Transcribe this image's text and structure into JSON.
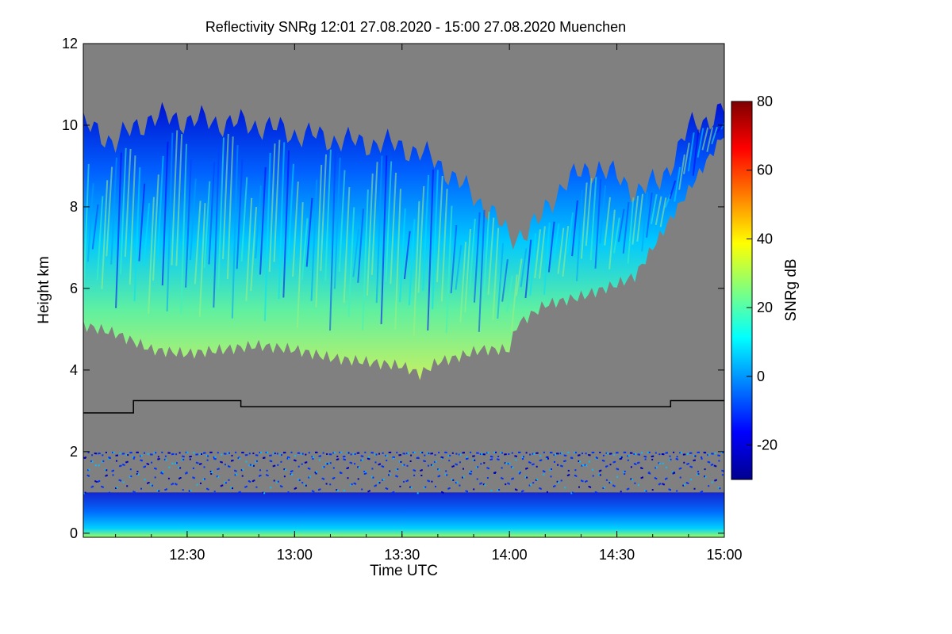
{
  "chart_data": {
    "type": "heatmap",
    "title": "Reflectivity SNRg   12:01 27.08.2020 - 15:00 27.08.2020 Muenchen",
    "xlabel": "Time UTC",
    "ylabel": "Height km",
    "x_ticks": [
      "12:30",
      "13:00",
      "13:30",
      "14:00",
      "14:30",
      "15:00"
    ],
    "x_tick_minutes": [
      30,
      60,
      90,
      120,
      150,
      180
    ],
    "xlim_minutes": [
      1,
      180
    ],
    "y_ticks": [
      0,
      2,
      4,
      6,
      8,
      10,
      12
    ],
    "ylim": [
      -0.1,
      12
    ],
    "colorbar": {
      "label": "SNRg dB",
      "range": [
        -30,
        80
      ],
      "ticks": [
        -20,
        0,
        20,
        40,
        60,
        80
      ],
      "colormap": [
        "#00008f",
        "#0000ff",
        "#007fff",
        "#00ffff",
        "#7fff7f",
        "#ffff00",
        "#ff7f00",
        "#ff0000",
        "#7f0000"
      ]
    },
    "background_color": "#808080",
    "cloud_top_km": [
      [
        1,
        10.0
      ],
      [
        10,
        9.6
      ],
      [
        20,
        10.2
      ],
      [
        35,
        10.1
      ],
      [
        50,
        10.0
      ],
      [
        60,
        9.8
      ],
      [
        75,
        9.6
      ],
      [
        90,
        9.5
      ],
      [
        100,
        9.1
      ],
      [
        108,
        8.4
      ],
      [
        115,
        7.9
      ],
      [
        120,
        7.2
      ],
      [
        128,
        7.6
      ],
      [
        135,
        8.6
      ],
      [
        145,
        9.0
      ],
      [
        155,
        8.4
      ],
      [
        162,
        8.6
      ],
      [
        170,
        9.9
      ],
      [
        180,
        10.4
      ]
    ],
    "cloud_base_km": [
      [
        1,
        5.1
      ],
      [
        10,
        4.9
      ],
      [
        20,
        4.5
      ],
      [
        30,
        4.4
      ],
      [
        40,
        4.5
      ],
      [
        50,
        4.6
      ],
      [
        60,
        4.5
      ],
      [
        70,
        4.3
      ],
      [
        80,
        4.2
      ],
      [
        90,
        4.1
      ],
      [
        95,
        3.9
      ],
      [
        100,
        4.2
      ],
      [
        105,
        4.3
      ],
      [
        112,
        4.5
      ],
      [
        120,
        4.5
      ],
      [
        122,
        5.1
      ],
      [
        130,
        5.6
      ],
      [
        140,
        5.8
      ],
      [
        150,
        6.1
      ],
      [
        155,
        6.3
      ],
      [
        160,
        7.0
      ],
      [
        170,
        8.4
      ],
      [
        180,
        9.8
      ]
    ],
    "melting_layer_line_km": [
      [
        1,
        2.95
      ],
      [
        15,
        2.95
      ],
      [
        15,
        3.25
      ],
      [
        45,
        3.25
      ],
      [
        45,
        3.1
      ],
      [
        165,
        3.1
      ],
      [
        165,
        3.25
      ],
      [
        180,
        3.25
      ]
    ],
    "low_layer_top_km": 1.6,
    "low_layer_dense_top_km": 1.0
  }
}
